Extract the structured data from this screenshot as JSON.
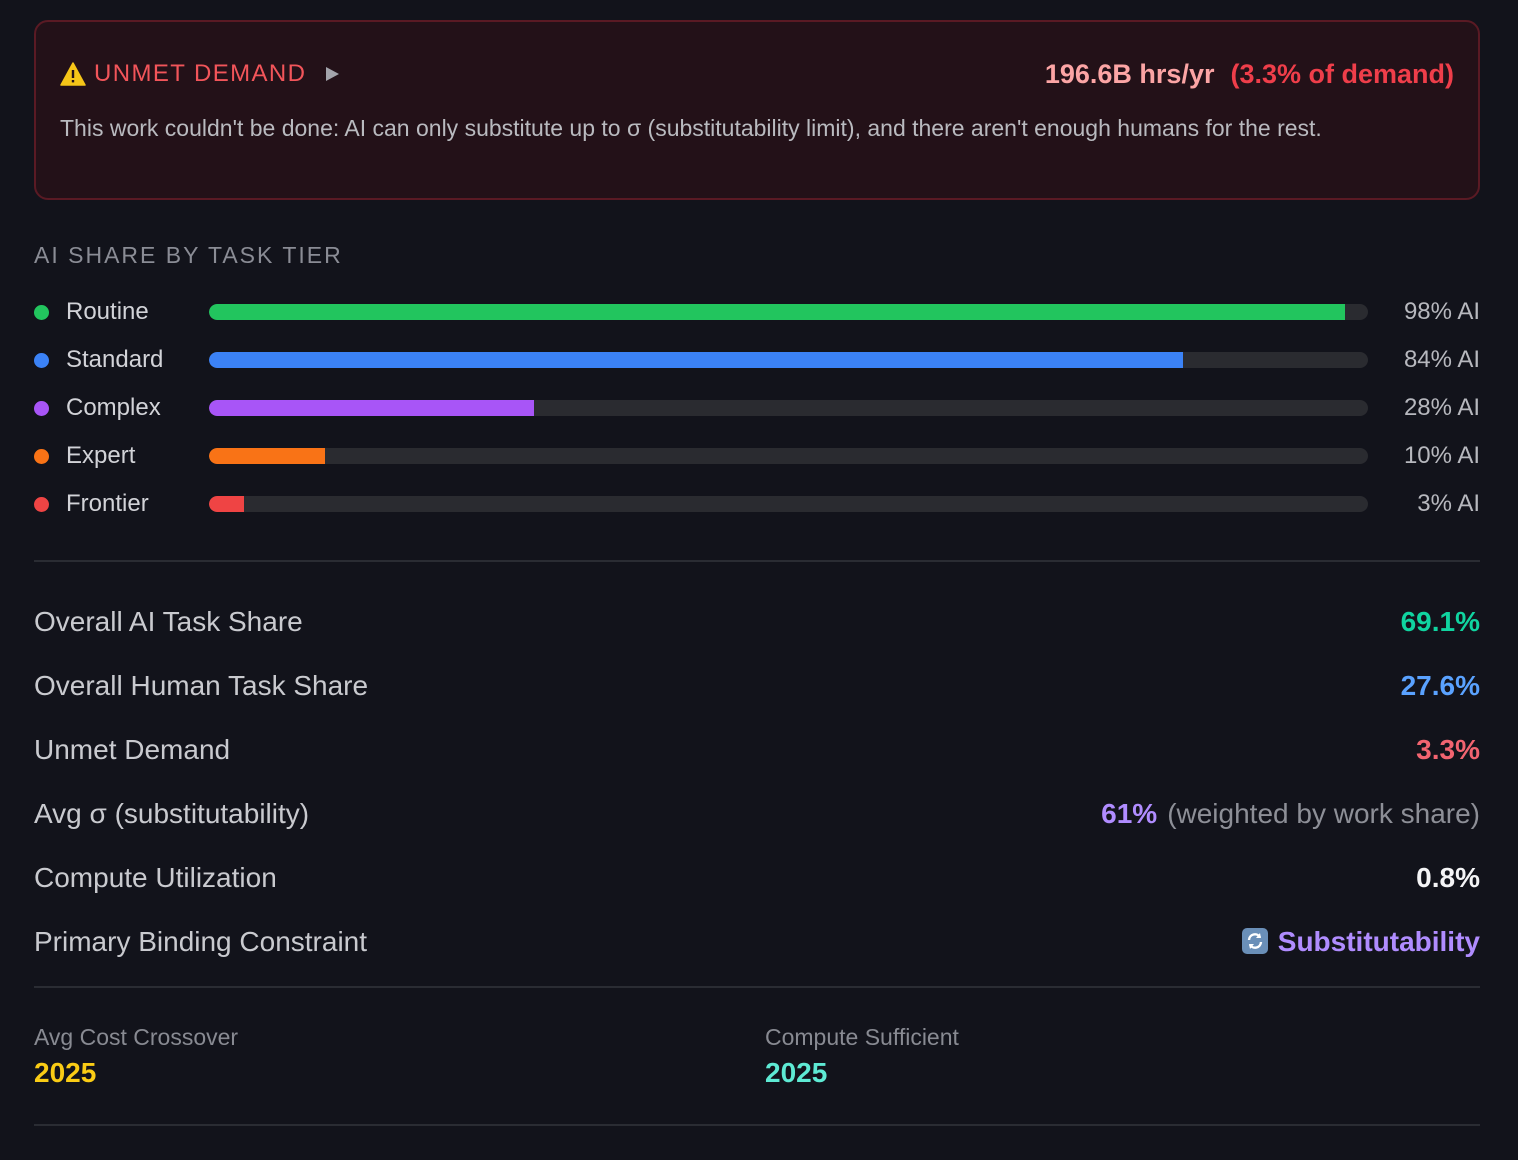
{
  "alert": {
    "icon": "warning-icon",
    "title": "UNMET DEMAND",
    "hours": "196.6B hrs/yr",
    "percent": "(3.3% of demand)",
    "body": "This work couldn't be done: AI can only substitute up to σ (substitutability limit), and there aren't enough humans for the rest.",
    "colors": {
      "title": "#f2555a",
      "hours": "#fca5a5",
      "percent": "#ef3e4a"
    }
  },
  "tiers": {
    "title": "AI SHARE BY TASK TIER",
    "items": [
      {
        "label": "Routine",
        "share": 98,
        "pct_label": "98% AI",
        "color": "#22c55e"
      },
      {
        "label": "Standard",
        "share": 84,
        "pct_label": "84% AI",
        "color": "#3b82f6"
      },
      {
        "label": "Complex",
        "share": 28,
        "pct_label": "28% AI",
        "color": "#a855f7"
      },
      {
        "label": "Expert",
        "share": 10,
        "pct_label": "10% AI",
        "color": "#f97316"
      },
      {
        "label": "Frontier",
        "share": 3,
        "pct_label": "3% AI",
        "color": "#ef4444"
      }
    ]
  },
  "stats": [
    {
      "label": "Overall AI Task Share",
      "value": "69.1%",
      "color": "#10d4a0"
    },
    {
      "label": "Overall Human Task Share",
      "value": "27.6%",
      "color": "#5aa2ff"
    },
    {
      "label": "Unmet Demand",
      "value": "3.3%",
      "color": "#f26470"
    },
    {
      "label": "Avg σ (substitutability)",
      "value": "61%",
      "note": "(weighted by work share)",
      "color": "#b08cff"
    },
    {
      "label": "Compute Utilization",
      "value": "0.8%",
      "color": "#f4f4f6"
    },
    {
      "label": "Primary Binding Constraint",
      "value": "Substitutability",
      "icon": "refresh-icon",
      "color": "#b08cff"
    }
  ],
  "footer": {
    "crossover": {
      "label": "Avg Cost Crossover",
      "value": "2025",
      "color": "#facc15"
    },
    "compute": {
      "label": "Compute Sufficient",
      "value": "2025",
      "color": "#5eead4"
    }
  }
}
